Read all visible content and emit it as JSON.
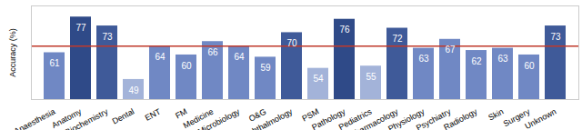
{
  "chart_data": {
    "type": "bar",
    "categories": [
      "Anaesthesia",
      "Anatomy",
      "Biochemistry",
      "Dental",
      "ENT",
      "FM",
      "Medicine",
      "Microbiology",
      "O&G",
      "Ophthalmology",
      "PSM",
      "Pathology",
      "Pediatrics",
      "Pharmacology",
      "Physiology",
      "Psychiatry",
      "Radiology",
      "Skin",
      "Surgery",
      "Unknown"
    ],
    "values": [
      61,
      77,
      73,
      49,
      64,
      60,
      66,
      64,
      59,
      70,
      54,
      76,
      55,
      72,
      63,
      67,
      62,
      63,
      60,
      73
    ],
    "colors": [
      "#7088c4",
      "#2f4a88",
      "#3f5a99",
      "#a3b3d9",
      "#7088c4",
      "#7088c4",
      "#7088c4",
      "#7088c4",
      "#7088c4",
      "#3f5a99",
      "#a3b3d9",
      "#2f4a88",
      "#a3b3d9",
      "#3f5a99",
      "#7088c4",
      "#7088c4",
      "#7088c4",
      "#7088c4",
      "#7088c4",
      "#3f5a99"
    ],
    "y_label": "Accuracy (%)",
    "ylim": [
      40,
      82
    ],
    "yticks": [],
    "tick_labels": "x",
    "data_labels": true,
    "reference_line": {
      "value": 64,
      "color": "#c0392b"
    }
  }
}
